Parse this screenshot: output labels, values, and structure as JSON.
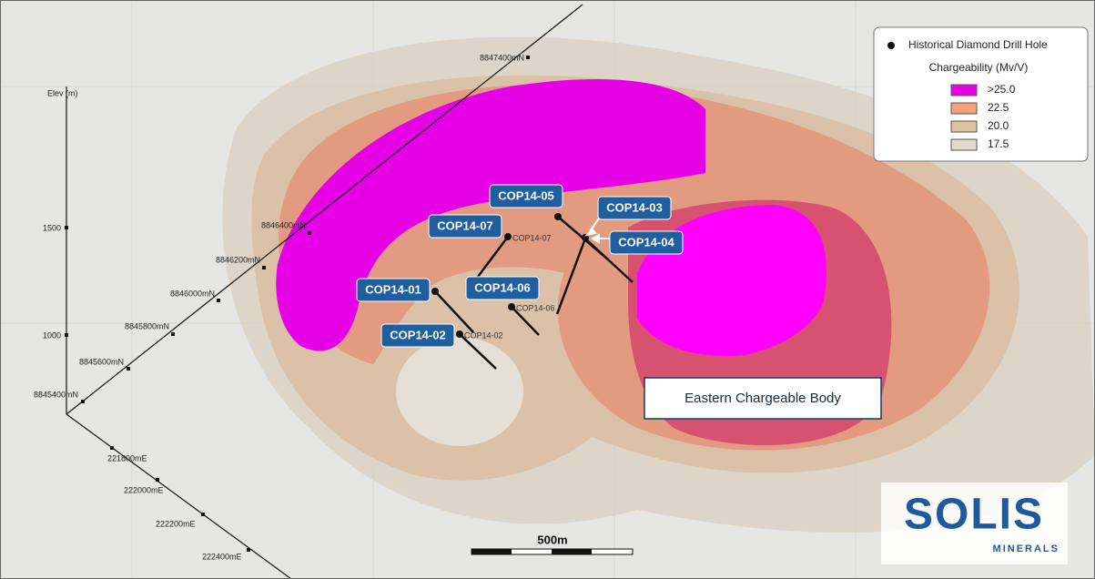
{
  "axes": {
    "elevation": {
      "title": "Elev (m)",
      "ticks": [
        1500,
        1000
      ]
    },
    "northing": [
      "8845400mN",
      "8845600mN",
      "8845800mN",
      "8846000mN",
      "8846200mN",
      "8846400mN",
      "8847400mN"
    ],
    "easting": [
      "221800mE",
      "222000mE",
      "222200mE",
      "222400mE"
    ]
  },
  "drill_holes": [
    "COP14-05",
    "COP14-03",
    "COP14-07",
    "COP14-04",
    "COP14-01",
    "COP14-06",
    "COP14-02"
  ],
  "hole_annotations": [
    "COP14-07",
    "COP14-06",
    "COP14-02"
  ],
  "legend": {
    "marker_label": "Historical Diamond Drill Hole",
    "title": "Chargeability (Mv/V)",
    "items": [
      {
        "label": ">25.0",
        "color": "#e600e6"
      },
      {
        "label": "22.5",
        "color": "#f4a07a"
      },
      {
        "label": "20.0",
        "color": "#dcc3a4"
      },
      {
        "label": "17.5",
        "color": "#dedad0"
      }
    ]
  },
  "annotation": "Eastern Chargeable Body",
  "scale_bar": "500m",
  "logo": {
    "name": "SOLIS",
    "subtitle": "MINERALS"
  }
}
